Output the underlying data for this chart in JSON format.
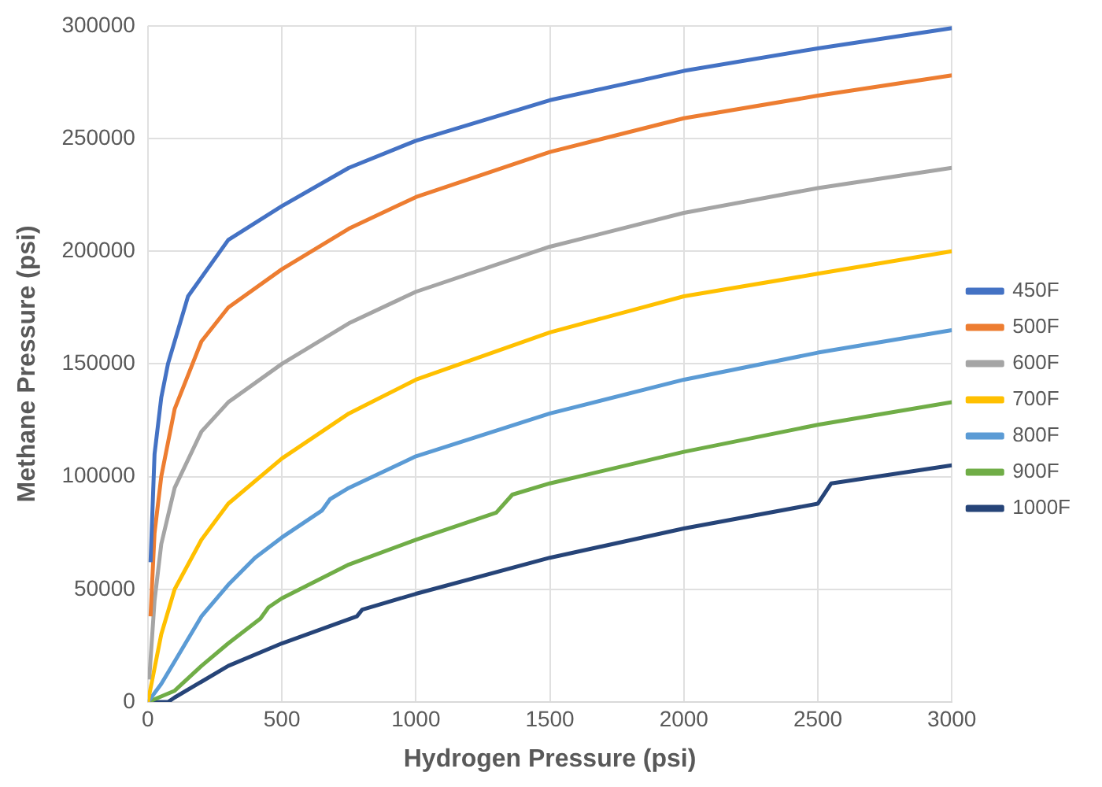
{
  "chart_data": {
    "type": "line",
    "xlabel": "Hydrogen Pressure (psi)",
    "ylabel": "Methane Pressure (psi)",
    "xlim": [
      0,
      3000
    ],
    "xticks": [
      0,
      500,
      1000,
      1500,
      2000,
      2500,
      3000
    ],
    "ylim": [
      0,
      300000
    ],
    "yticks": [
      0,
      50000,
      100000,
      150000,
      200000,
      250000,
      300000
    ],
    "grid": true,
    "legend": "right",
    "marker": "none",
    "line_style": "solid",
    "series": [
      {
        "name": "450F",
        "color": "#4472c4",
        "x": [
          10,
          25,
          50,
          75,
          150,
          300,
          500,
          750,
          1000,
          1500,
          2000,
          2500,
          3000
        ],
        "values": [
          62000,
          110000,
          135000,
          150000,
          180000,
          205000,
          220000,
          237000,
          249000,
          267000,
          280000,
          290000,
          299000
        ]
      },
      {
        "name": "500F",
        "color": "#ed7d31",
        "x": [
          10,
          25,
          50,
          100,
          200,
          300,
          500,
          750,
          1000,
          1500,
          2000,
          2500,
          3000
        ],
        "values": [
          38000,
          75000,
          100000,
          130000,
          160000,
          175000,
          192000,
          210000,
          224000,
          244000,
          259000,
          269000,
          278000
        ]
      },
      {
        "name": "600F",
        "color": "#a5a5a5",
        "x": [
          5,
          25,
          50,
          100,
          200,
          300,
          500,
          750,
          1000,
          1500,
          2000,
          2500,
          3000
        ],
        "values": [
          10000,
          45000,
          70000,
          95000,
          120000,
          133000,
          150000,
          168000,
          182000,
          202000,
          217000,
          228000,
          237000
        ]
      },
      {
        "name": "700F",
        "color": "#ffc000",
        "x": [
          0,
          25,
          50,
          100,
          200,
          300,
          500,
          750,
          1000,
          1500,
          2000,
          2500,
          3000
        ],
        "values": [
          0,
          15000,
          30000,
          50000,
          72000,
          88000,
          108000,
          128000,
          143000,
          164000,
          180000,
          190000,
          200000
        ]
      },
      {
        "name": "800F",
        "color": "#5b9bd5",
        "x": [
          0,
          50,
          100,
          200,
          300,
          400,
          500,
          650,
          680,
          750,
          1000,
          1500,
          2000,
          2500,
          3000
        ],
        "values": [
          0,
          8000,
          18000,
          38000,
          52000,
          64000,
          73000,
          85000,
          90000,
          95000,
          109000,
          128000,
          143000,
          155000,
          165000
        ]
      },
      {
        "name": "900F",
        "color": "#70ad47",
        "x": [
          0,
          100,
          200,
          300,
          420,
          450,
          500,
          750,
          1000,
          1300,
          1360,
          1500,
          2000,
          2500,
          3000
        ],
        "values": [
          0,
          5000,
          16000,
          26000,
          37000,
          42000,
          46000,
          61000,
          72000,
          84000,
          92000,
          97000,
          111000,
          123000,
          133000
        ]
      },
      {
        "name": "1000F",
        "color": "#264478",
        "x": [
          0,
          75,
          100,
          200,
          300,
          500,
          780,
          800,
          1000,
          1500,
          2000,
          2500,
          2550,
          3000
        ],
        "values": [
          0,
          0,
          2000,
          9000,
          16000,
          26000,
          38000,
          41000,
          48000,
          64000,
          77000,
          88000,
          97000,
          105000
        ]
      }
    ]
  }
}
